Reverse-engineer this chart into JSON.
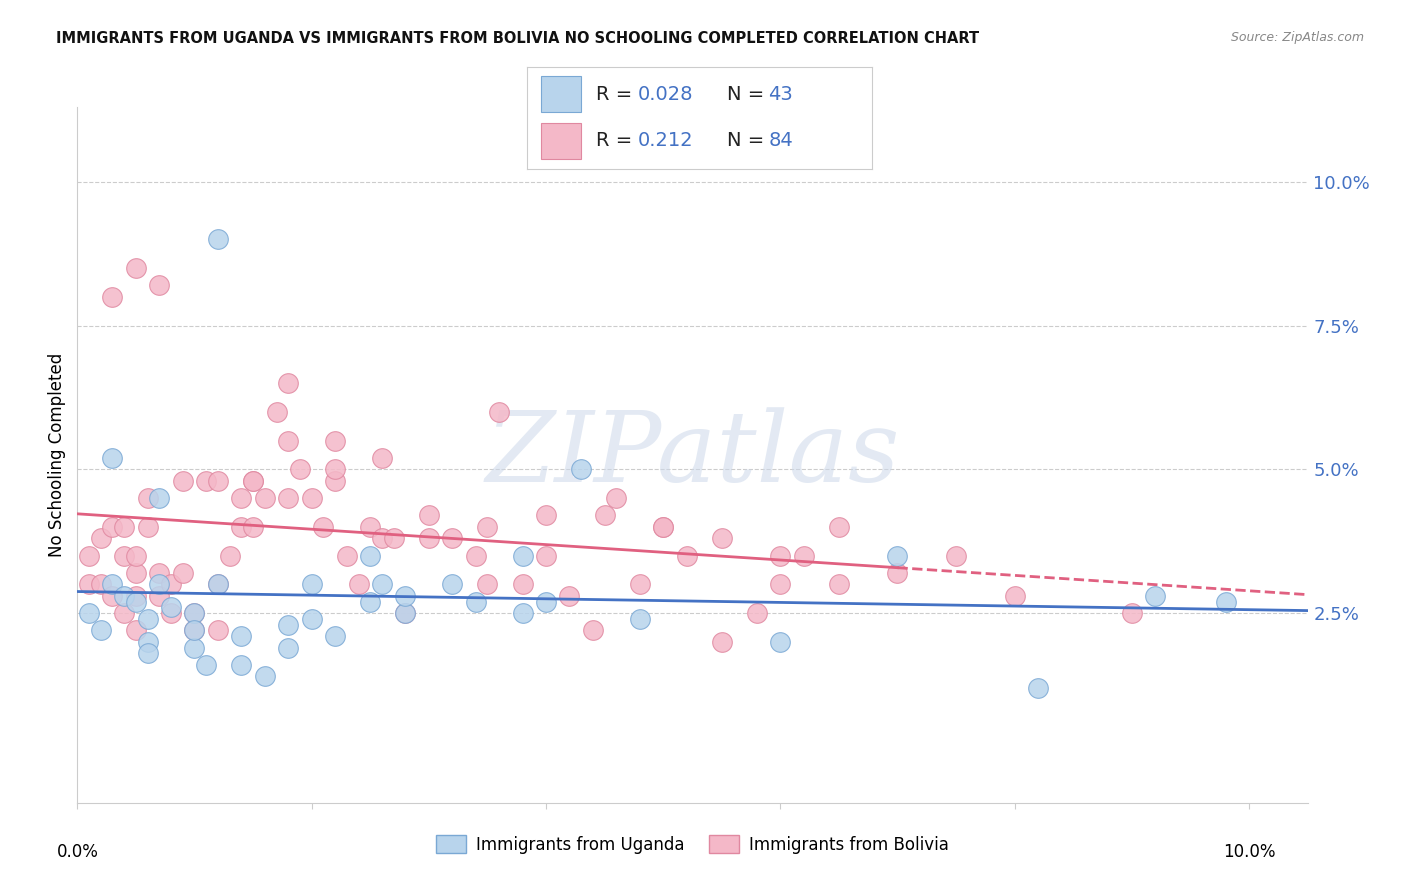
{
  "title": "IMMIGRANTS FROM UGANDA VS IMMIGRANTS FROM BOLIVIA NO SCHOOLING COMPLETED CORRELATION CHART",
  "source": "Source: ZipAtlas.com",
  "ylabel": "No Schooling Completed",
  "ytick_labels": [
    "2.5%",
    "5.0%",
    "7.5%",
    "10.0%"
  ],
  "ytick_values": [
    0.025,
    0.05,
    0.075,
    0.1
  ],
  "xlim": [
    0.0,
    0.105
  ],
  "ylim": [
    -0.008,
    0.113
  ],
  "legend_r_uganda": "R = 0.028",
  "legend_n_uganda": "N = 43",
  "legend_r_bolivia": "R = 0.212",
  "legend_n_bolivia": "N = 84",
  "color_uganda_fill": "#b8d4ec",
  "color_uganda_edge": "#7aa8d4",
  "color_bolivia_fill": "#f4b8c8",
  "color_bolivia_edge": "#e088a0",
  "color_blue": "#4472c4",
  "color_pink": "#e06080",
  "watermark": "ZIPatlas",
  "bottom_legend_uganda": "Immigrants from Uganda",
  "bottom_legend_bolivia": "Immigrants from Bolivia",
  "uganda_x": [
    0.012,
    0.001,
    0.002,
    0.003,
    0.004,
    0.005,
    0.006,
    0.006,
    0.006,
    0.007,
    0.008,
    0.01,
    0.01,
    0.011,
    0.014,
    0.014,
    0.016,
    0.018,
    0.018,
    0.02,
    0.022,
    0.025,
    0.026,
    0.028,
    0.032,
    0.034,
    0.038,
    0.04,
    0.043,
    0.048,
    0.003,
    0.007,
    0.01,
    0.012,
    0.02,
    0.025,
    0.028,
    0.038,
    0.06,
    0.07,
    0.082,
    0.092,
    0.098
  ],
  "uganda_y": [
    0.09,
    0.025,
    0.022,
    0.03,
    0.028,
    0.027,
    0.024,
    0.02,
    0.018,
    0.045,
    0.026,
    0.025,
    0.019,
    0.016,
    0.021,
    0.016,
    0.014,
    0.023,
    0.019,
    0.024,
    0.021,
    0.035,
    0.03,
    0.025,
    0.03,
    0.027,
    0.035,
    0.027,
    0.05,
    0.024,
    0.052,
    0.03,
    0.022,
    0.03,
    0.03,
    0.027,
    0.028,
    0.025,
    0.02,
    0.035,
    0.012,
    0.028,
    0.027
  ],
  "bolivia_x": [
    0.001,
    0.001,
    0.002,
    0.002,
    0.003,
    0.003,
    0.004,
    0.004,
    0.004,
    0.005,
    0.005,
    0.005,
    0.005,
    0.006,
    0.006,
    0.007,
    0.007,
    0.008,
    0.008,
    0.009,
    0.01,
    0.01,
    0.011,
    0.012,
    0.012,
    0.013,
    0.014,
    0.014,
    0.015,
    0.015,
    0.016,
    0.017,
    0.018,
    0.018,
    0.019,
    0.02,
    0.021,
    0.022,
    0.022,
    0.023,
    0.024,
    0.025,
    0.026,
    0.027,
    0.028,
    0.03,
    0.032,
    0.034,
    0.035,
    0.036,
    0.038,
    0.04,
    0.042,
    0.044,
    0.046,
    0.048,
    0.05,
    0.052,
    0.055,
    0.058,
    0.06,
    0.062,
    0.065,
    0.003,
    0.005,
    0.007,
    0.009,
    0.012,
    0.015,
    0.018,
    0.022,
    0.026,
    0.03,
    0.035,
    0.04,
    0.045,
    0.05,
    0.055,
    0.06,
    0.065,
    0.07,
    0.075,
    0.08,
    0.09
  ],
  "bolivia_y": [
    0.035,
    0.03,
    0.038,
    0.03,
    0.028,
    0.04,
    0.035,
    0.04,
    0.025,
    0.032,
    0.028,
    0.022,
    0.035,
    0.04,
    0.045,
    0.028,
    0.032,
    0.03,
    0.025,
    0.032,
    0.022,
    0.025,
    0.048,
    0.03,
    0.022,
    0.035,
    0.04,
    0.045,
    0.048,
    0.04,
    0.045,
    0.06,
    0.065,
    0.055,
    0.05,
    0.045,
    0.04,
    0.055,
    0.048,
    0.035,
    0.03,
    0.04,
    0.038,
    0.038,
    0.025,
    0.042,
    0.038,
    0.035,
    0.03,
    0.06,
    0.03,
    0.035,
    0.028,
    0.022,
    0.045,
    0.03,
    0.04,
    0.035,
    0.02,
    0.025,
    0.03,
    0.035,
    0.04,
    0.08,
    0.085,
    0.082,
    0.048,
    0.048,
    0.048,
    0.045,
    0.05,
    0.052,
    0.038,
    0.04,
    0.042,
    0.042,
    0.04,
    0.038,
    0.035,
    0.03,
    0.032,
    0.035,
    0.028,
    0.025
  ]
}
